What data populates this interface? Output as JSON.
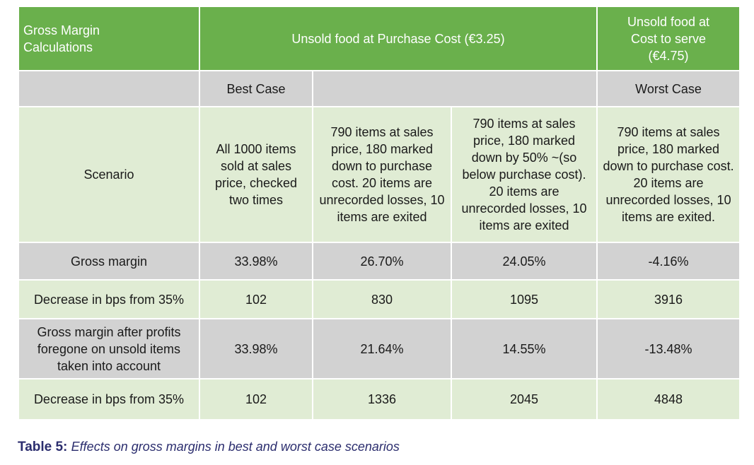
{
  "header": {
    "col1": "Gross Margin Calculations",
    "purchase_cost": "Unsold food at Purchase Cost (€3.25)",
    "cost_to_serve": "Unsold food at Cost to serve (€4.75)"
  },
  "case_row": {
    "best": "Best Case",
    "worst": "Worst Case"
  },
  "rows": [
    {
      "label": "Scenario",
      "values": [
        "All 1000 items sold at sales price, checked two times",
        "790 items at sales price, 180 marked down to purchase cost. 20 items are unrecorded losses, 10 items are exited",
        "790 items at sales price, 180 marked down by 50% ~(so below purchase cost). 20 items are unrecorded losses, 10 items are exited",
        "790 items at sales price, 180 marked down to purchase cost. 20 items are unrecorded losses, 10 items are exited."
      ]
    },
    {
      "label": "Gross margin",
      "values": [
        "33.98%",
        "26.70%",
        "24.05%",
        "-4.16%"
      ]
    },
    {
      "label": "Decrease in bps from 35%",
      "values": [
        "102",
        "830",
        "1095",
        "3916"
      ]
    },
    {
      "label": "Gross margin after profits foregone on unsold items taken into account",
      "values": [
        "33.98%",
        "21.64%",
        "14.55%",
        "-13.48%"
      ]
    },
    {
      "label": "Decrease in bps from 35%",
      "values": [
        "102",
        "1336",
        "2045",
        "4848"
      ]
    }
  ],
  "caption": {
    "label": "Table 5:",
    "text": "Effects on gross margins in best and worst case scenarios"
  },
  "colors": {
    "header_green": "#6ab04c",
    "grey": "#d2d2d2",
    "light_green": "#e0ecd4",
    "caption": "#2b2d6e"
  }
}
